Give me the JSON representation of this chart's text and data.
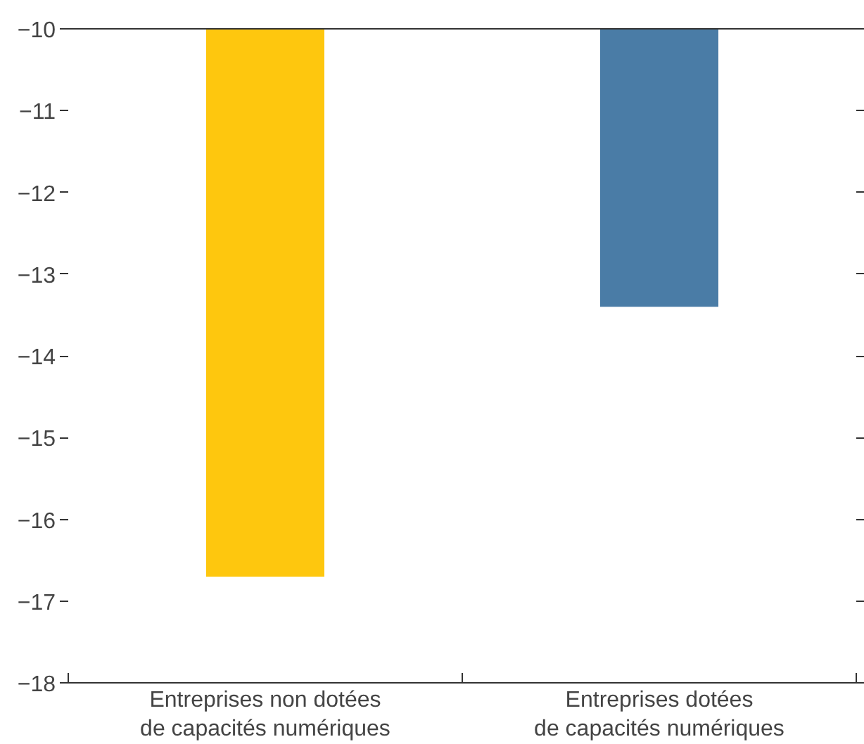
{
  "chart_data": {
    "type": "bar",
    "categories": [
      "Entreprises non dotées\nde capacités numériques",
      "Entreprises dotées\nde capacités numériques"
    ],
    "values": [
      -16.7,
      -13.4
    ],
    "colors": [
      "#fec70e",
      "#4a7ca6"
    ],
    "ylim": [
      -18,
      -10
    ],
    "yticks": [
      {
        "value": -10,
        "label": "−10"
      },
      {
        "value": -11,
        "label": "−11"
      },
      {
        "value": -12,
        "label": "−12"
      },
      {
        "value": -13,
        "label": "−13"
      },
      {
        "value": -14,
        "label": "−14"
      },
      {
        "value": -15,
        "label": "−15"
      },
      {
        "value": -16,
        "label": "−16"
      },
      {
        "value": -17,
        "label": "−17"
      },
      {
        "value": -18,
        "label": "−18"
      }
    ],
    "grid": false
  }
}
